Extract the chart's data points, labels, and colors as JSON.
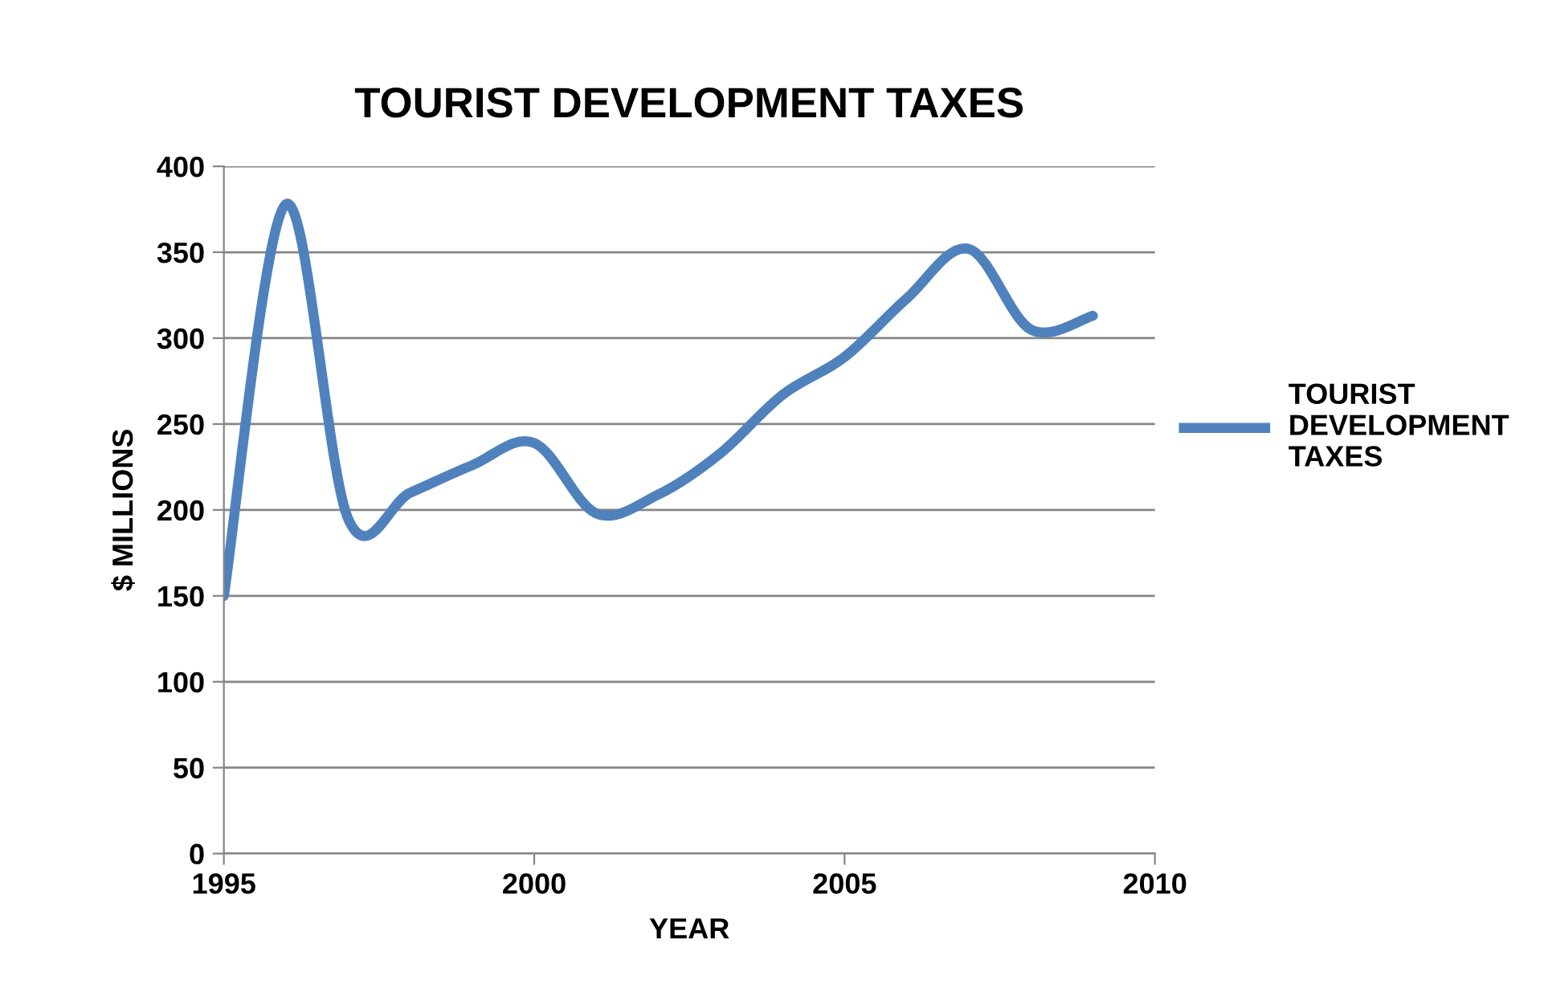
{
  "chart_data": {
    "type": "line",
    "title": "TOURIST DEVELOPMENT TAXES",
    "xlabel": "YEAR",
    "ylabel": "$ MILLIONS",
    "x": [
      1995,
      1996,
      1997,
      1998,
      1999,
      2000,
      2001,
      2002,
      2003,
      2004,
      2005,
      2006,
      2007,
      2008,
      2009
    ],
    "series": [
      {
        "name": "TOURIST DEVELOPMENT TAXES",
        "color": "#4f81bd",
        "values": [
          150,
          378,
          195,
          210,
          226,
          239,
          198,
          209,
          233,
          267,
          289,
          323,
          352,
          305,
          313
        ]
      }
    ],
    "xlim": [
      1995,
      2010
    ],
    "xticks": [
      1995,
      2000,
      2005,
      2010
    ],
    "ylim": [
      0,
      400
    ],
    "yticks": [
      0,
      50,
      100,
      150,
      200,
      250,
      300,
      350,
      400
    ],
    "grid": "y",
    "legend": "right",
    "marker": "none",
    "line_style": "solid"
  }
}
